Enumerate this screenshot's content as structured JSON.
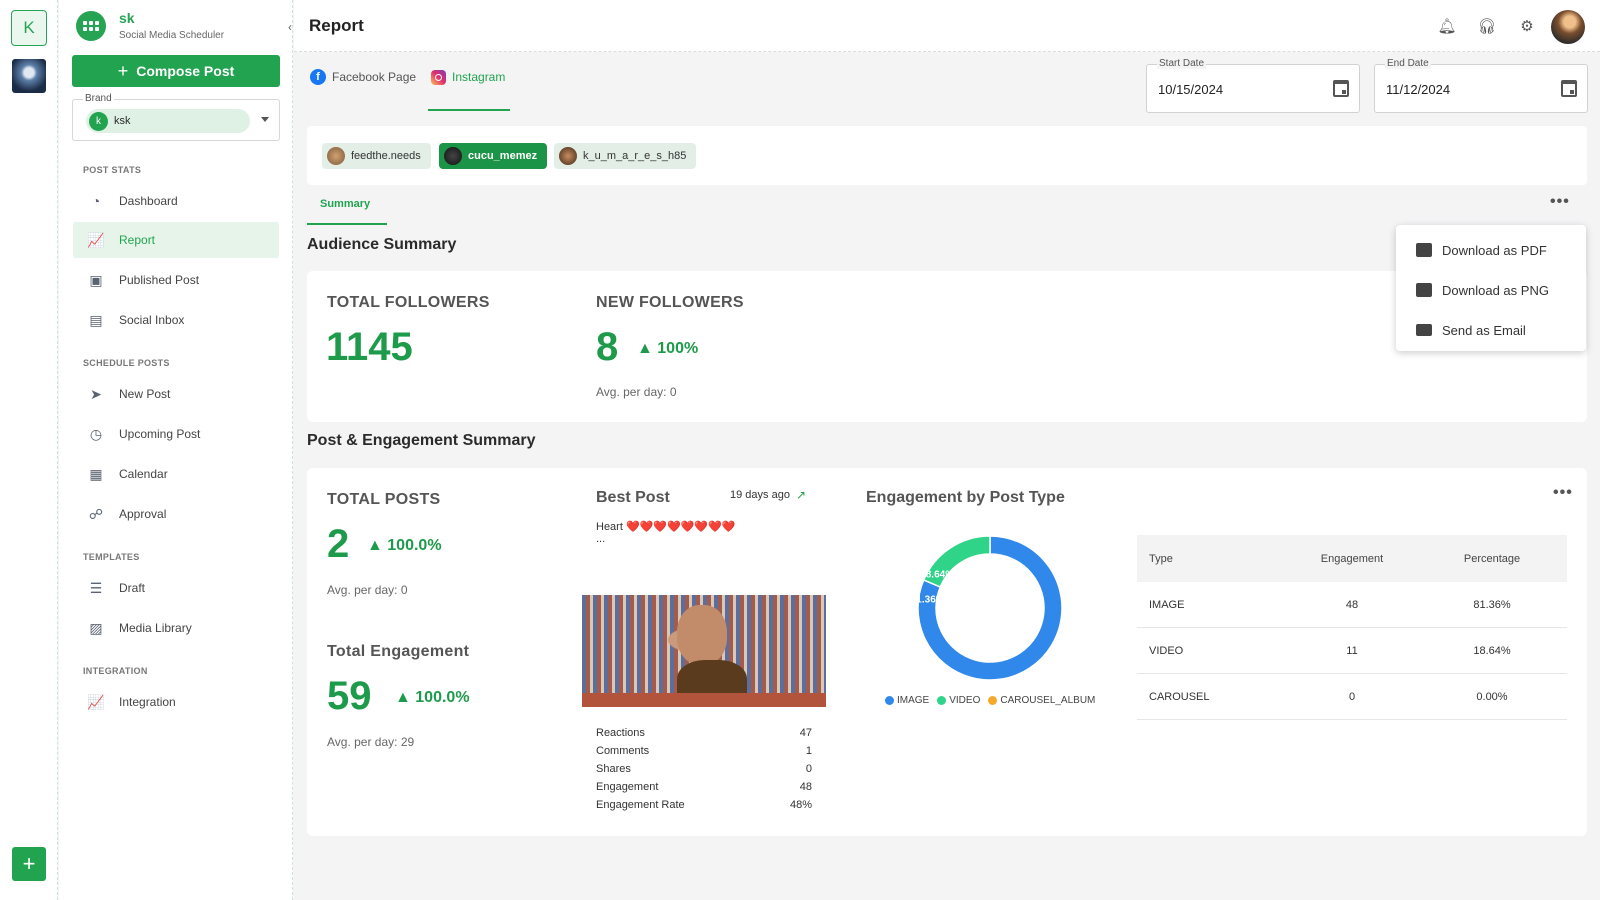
{
  "rail": {
    "workspace_letter": "K"
  },
  "sidebar": {
    "brand_name": "sk",
    "brand_sub": "Social Media Scheduler",
    "compose_label": "Compose Post",
    "brand_label": "Brand",
    "brand_avatar": "k",
    "brand_value": "ksk",
    "sections": {
      "post_stats": "POST STATS",
      "schedule_posts": "SCHEDULE POSTS",
      "templates": "TEMPLATES",
      "integration": "INTEGRATION"
    },
    "items": [
      {
        "label": "Dashboard",
        "icon": "gauge-icon"
      },
      {
        "label": "Report",
        "icon": "chart-up-icon"
      },
      {
        "label": "Published Post",
        "icon": "published-icon"
      },
      {
        "label": "Social Inbox",
        "icon": "inbox-icon"
      },
      {
        "label": "New Post",
        "icon": "send-icon"
      },
      {
        "label": "Upcoming Post",
        "icon": "clock-icon"
      },
      {
        "label": "Calendar",
        "icon": "calendar-icon"
      },
      {
        "label": "Approval",
        "icon": "approval-icon"
      },
      {
        "label": "Draft",
        "icon": "draft-icon"
      },
      {
        "label": "Media Library",
        "icon": "media-icon"
      },
      {
        "label": "Integration",
        "icon": "integration-icon"
      }
    ]
  },
  "header": {
    "title": "Report"
  },
  "platforms": {
    "facebook": "Facebook Page",
    "instagram": "Instagram"
  },
  "dates": {
    "start_label": "Start Date",
    "start_value": "10/15/2024",
    "end_label": "End Date",
    "end_value": "11/12/2024"
  },
  "accounts": [
    "feedthe.needs",
    "cucu_memez",
    "k_u_m_a_r_e_s_h85"
  ],
  "tabs": {
    "summary": "Summary"
  },
  "audience": {
    "title": "Audience Summary",
    "total_followers_label": "TOTAL FOLLOWERS",
    "total_followers": "1145",
    "new_followers_label": "NEW FOLLOWERS",
    "new_followers": "8",
    "new_followers_pct": "▲ 100%",
    "avg_per_day": "Avg. per day: 0"
  },
  "menu": {
    "pdf": "Download as PDF",
    "png": "Download as PNG",
    "email": "Send as Email"
  },
  "engagement": {
    "title": "Post & Engagement Summary",
    "total_posts_label": "TOTAL POSTS",
    "total_posts": "2",
    "total_posts_pct": "▲ 100.0%",
    "posts_avg": "Avg. per day: 0",
    "total_eng_label": "Total Engagement",
    "total_eng": "59",
    "total_eng_pct": "▲ 100.0%",
    "eng_avg": "Avg. per day: 29"
  },
  "best_post": {
    "title": "Best Post",
    "ago": "19 days ago",
    "caption": "Heart ❤️❤️❤️❤️❤️❤️❤️❤️",
    "ellipsis": "...",
    "stats": [
      {
        "label": "Reactions",
        "value": "47"
      },
      {
        "label": "Comments",
        "value": "1"
      },
      {
        "label": "Shares",
        "value": "0"
      },
      {
        "label": "Engagement",
        "value": "48"
      },
      {
        "label": "Engagement Rate",
        "value": "48%"
      }
    ]
  },
  "chart": {
    "title": "Engagement by Post Type"
  },
  "chart_data": {
    "type": "pie",
    "title": "Engagement by Post Type",
    "categories": [
      "IMAGE",
      "VIDEO",
      "CAROUSEL_ALBUM"
    ],
    "values": [
      81.36,
      18.64,
      0
    ],
    "colors": [
      "#2f88ea",
      "#2fd489",
      "#f6a82b"
    ],
    "labels": [
      "81.36%",
      "18.64%",
      ""
    ]
  },
  "table": {
    "headers": [
      "Type",
      "Engagement",
      "Percentage"
    ],
    "rows": [
      [
        "IMAGE",
        "48",
        "81.36%"
      ],
      [
        "VIDEO",
        "11",
        "18.64%"
      ],
      [
        "CAROUSEL",
        "0",
        "0.00%"
      ]
    ]
  }
}
